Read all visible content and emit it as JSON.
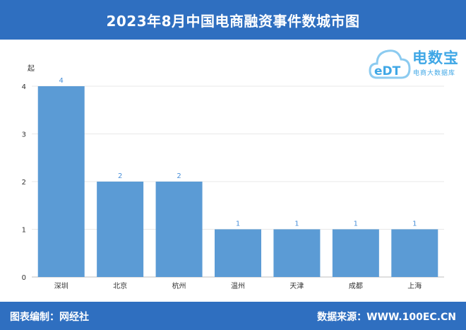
{
  "header": {
    "title": "2023年8月中国电商融资事件数城市图"
  },
  "footer": {
    "editor": "图表编制：网经社",
    "source": "数据来源：WWW.100EC.CN"
  },
  "logo": {
    "name": "电数宝",
    "subtitle": "电商大数据库",
    "badge": "eDT"
  },
  "colors": {
    "header_bg": "#2f6fc0",
    "bar": "#5b9bd5",
    "label": "#4a90d9"
  },
  "chart_data": {
    "type": "bar",
    "title": "2023年8月中国电商融资事件数城市图",
    "ylabel": "起",
    "categories": [
      "深圳",
      "北京",
      "杭州",
      "温州",
      "天津",
      "成都",
      "上海"
    ],
    "values": [
      4,
      2,
      2,
      1,
      1,
      1,
      1
    ],
    "ylim": [
      0,
      4
    ],
    "yticks": [
      0,
      1,
      2,
      3,
      4
    ],
    "grid": true,
    "data_labels": true
  }
}
